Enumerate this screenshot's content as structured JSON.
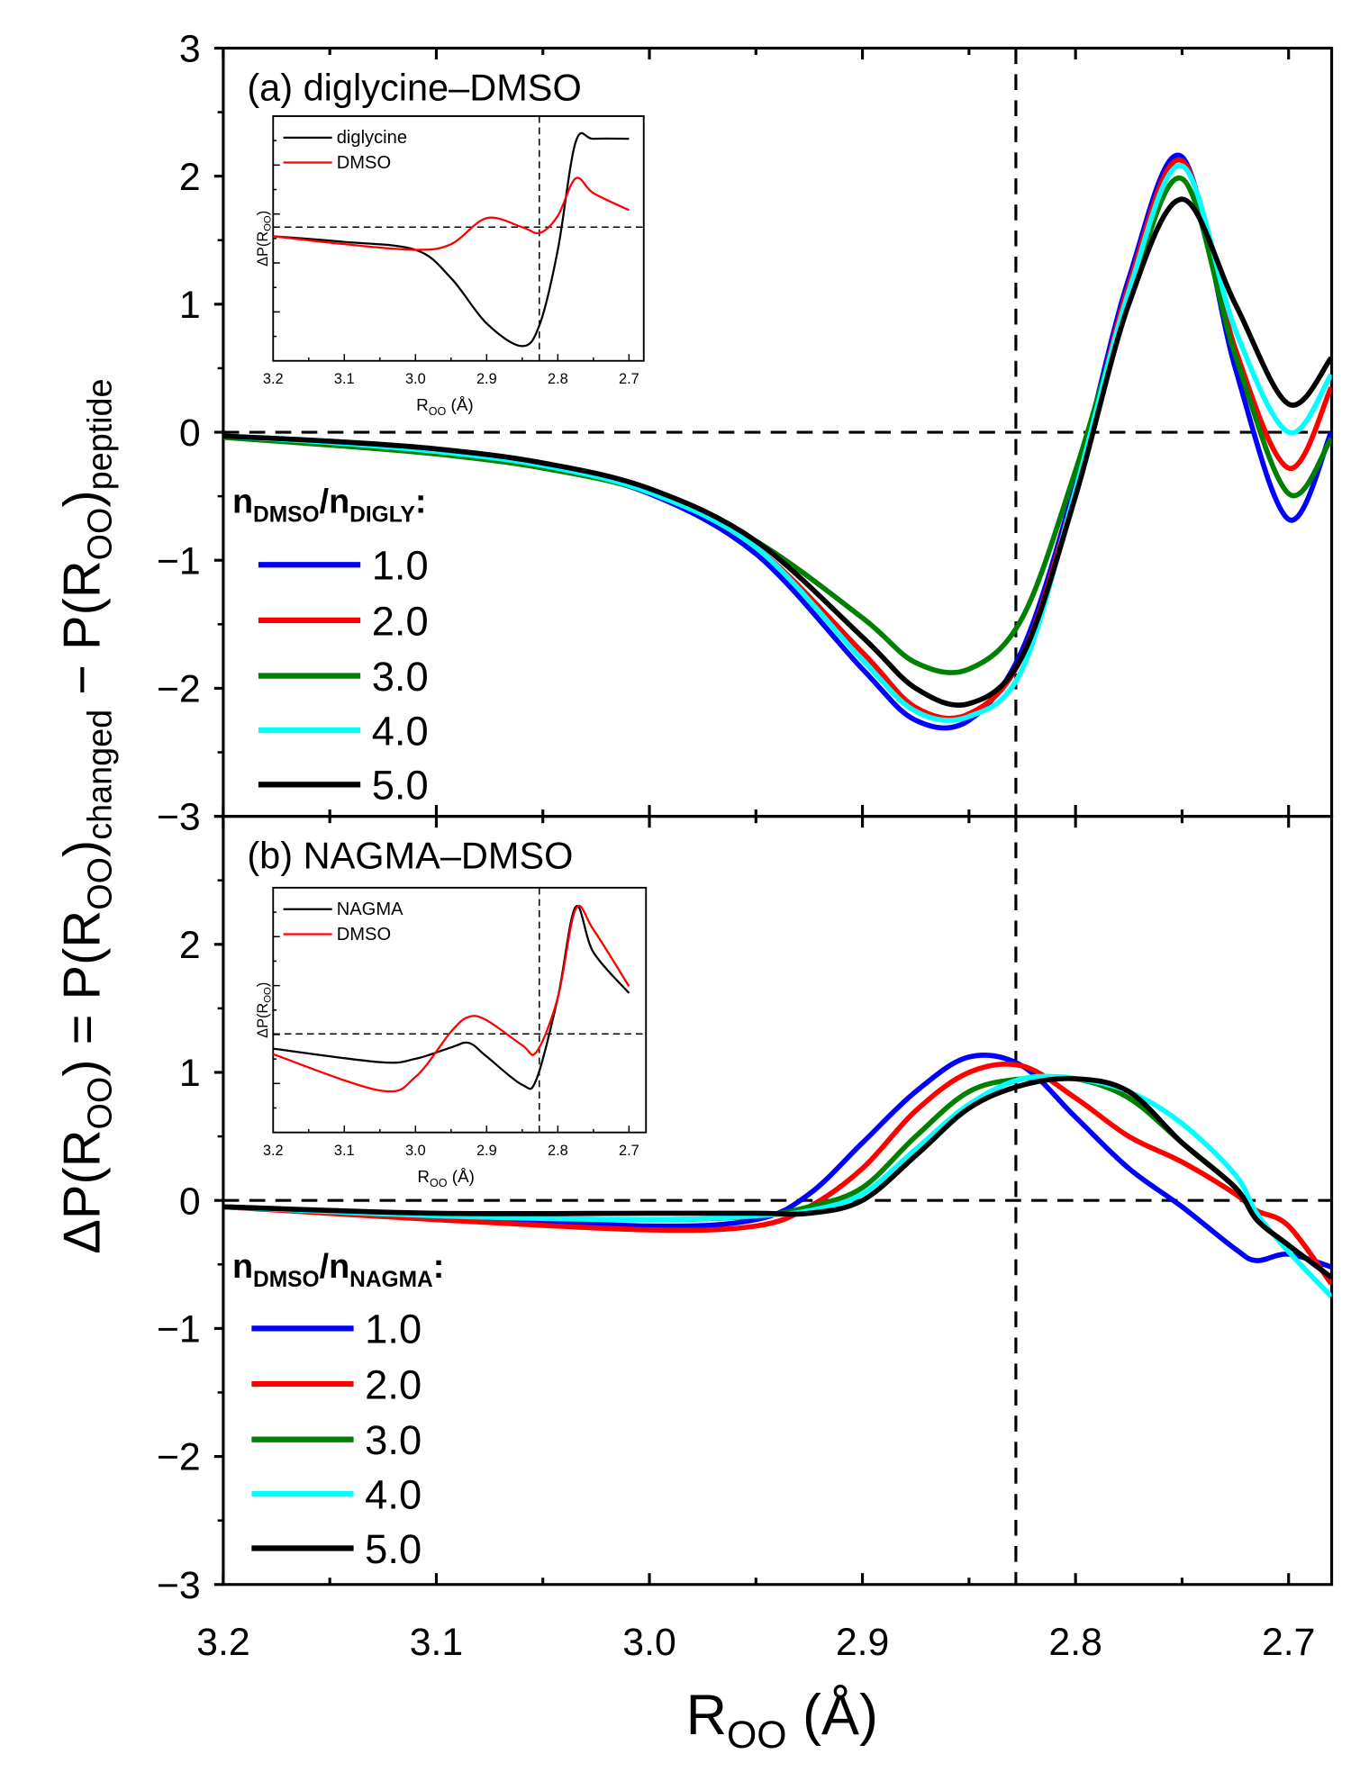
{
  "chart_data": [
    {
      "type": "line",
      "panel_title": "(a) diglycine–DMSO",
      "xlabel": "R_OO (Å)",
      "ylabel": "ΔP(R_OO) = P(R_OO)changed − P(R_OO)peptide",
      "xlim": [
        3.2,
        2.68
      ],
      "ylim": [
        -3,
        3
      ],
      "xticks": [
        "3.2",
        "3.1",
        "3.0",
        "2.9",
        "2.8",
        "2.7"
      ],
      "yticks": [
        "3",
        "2",
        "1",
        "0",
        "−1",
        "−2",
        "−3"
      ],
      "reference_lines": {
        "y": 0,
        "x": 2.828
      },
      "legend_title": "n_DMSO/n_DIGLY:",
      "x": [
        3.2,
        3.15,
        3.1,
        3.05,
        3.0,
        2.95,
        2.9,
        2.875,
        2.85,
        2.825,
        2.8,
        2.775,
        2.75,
        2.725,
        2.7,
        2.68
      ],
      "series": [
        {
          "name": "1.0",
          "color": "#0000ff",
          "values": [
            -0.03,
            -0.08,
            -0.15,
            -0.27,
            -0.48,
            -0.95,
            -1.85,
            -2.25,
            -2.25,
            -1.7,
            -0.4,
            1.2,
            2.15,
            0.5,
            -0.68,
            0.0
          ]
        },
        {
          "name": "2.0",
          "color": "#ff0000",
          "values": [
            -0.03,
            -0.08,
            -0.14,
            -0.26,
            -0.46,
            -0.9,
            -1.72,
            -2.15,
            -2.2,
            -1.75,
            -0.45,
            1.15,
            2.12,
            0.65,
            -0.28,
            0.35
          ]
        },
        {
          "name": "3.0",
          "color": "#008000",
          "values": [
            -0.04,
            -0.1,
            -0.17,
            -0.28,
            -0.47,
            -0.85,
            -1.45,
            -1.8,
            -1.85,
            -1.45,
            -0.3,
            1.05,
            1.98,
            0.6,
            -0.48,
            -0.05
          ]
        },
        {
          "name": "4.0",
          "color": "#00ffff",
          "values": [
            -0.03,
            -0.08,
            -0.15,
            -0.26,
            -0.47,
            -0.9,
            -1.78,
            -2.18,
            -2.22,
            -1.85,
            -0.45,
            1.1,
            2.08,
            0.8,
            0.0,
            0.45
          ]
        },
        {
          "name": "5.0",
          "color": "#000000",
          "values": [
            -0.03,
            -0.07,
            -0.13,
            -0.24,
            -0.44,
            -0.85,
            -1.6,
            -2.0,
            -2.12,
            -1.75,
            -0.5,
            1.0,
            1.82,
            1.0,
            0.22,
            0.58
          ]
        }
      ],
      "inset": {
        "xlabel": "R_OO (Å)",
        "ylabel": "ΔP(R_OO)",
        "xticks": [
          "3.2",
          "3.1",
          "3.0",
          "2.9",
          "2.8",
          "2.7"
        ],
        "reference_lines": {
          "y": 0,
          "x": 2.826
        },
        "x": [
          3.2,
          3.1,
          3.0,
          2.95,
          2.9,
          2.85,
          2.825,
          2.8,
          2.775,
          2.75,
          2.7
        ],
        "series": [
          {
            "name": "diglycine",
            "color": "#000000",
            "values": [
              -0.08,
              -0.13,
              -0.2,
              -0.45,
              -0.85,
              -1.05,
              -0.85,
              -0.2,
              0.75,
              0.78,
              0.78
            ]
          },
          {
            "name": "DMSO",
            "color": "#ff0000",
            "values": [
              -0.08,
              -0.15,
              -0.2,
              -0.15,
              0.08,
              0.0,
              -0.05,
              0.1,
              0.43,
              0.3,
              0.15
            ]
          }
        ]
      }
    },
    {
      "type": "line",
      "panel_title": "(b) NAGMA–DMSO",
      "xlim": [
        3.2,
        2.68
      ],
      "ylim": [
        -3,
        3
      ],
      "yticks": [
        "3",
        "2",
        "1",
        "0",
        "−1",
        "−2",
        "−3"
      ],
      "reference_lines": {
        "y": 0,
        "x": 2.828
      },
      "legend_title": "n_DMSO/n_NAGMA:",
      "x": [
        3.2,
        3.1,
        3.0,
        2.95,
        2.925,
        2.9,
        2.875,
        2.85,
        2.825,
        2.8,
        2.775,
        2.75,
        2.725,
        2.715,
        2.7,
        2.68
      ],
      "series": [
        {
          "name": "1.0",
          "color": "#0000ff",
          "values": [
            -0.05,
            -0.12,
            -0.2,
            -0.15,
            0.05,
            0.45,
            0.85,
            1.12,
            1.05,
            0.65,
            0.25,
            -0.05,
            -0.38,
            -0.47,
            -0.42,
            -0.52
          ]
        },
        {
          "name": "2.0",
          "color": "#ff0000",
          "values": [
            -0.05,
            -0.15,
            -0.23,
            -0.2,
            -0.05,
            0.25,
            0.7,
            1.0,
            1.05,
            0.8,
            0.5,
            0.3,
            0.05,
            -0.08,
            -0.2,
            -0.65
          ]
        },
        {
          "name": "3.0",
          "color": "#008000",
          "values": [
            -0.05,
            -0.12,
            -0.15,
            -0.12,
            -0.05,
            0.1,
            0.5,
            0.85,
            0.95,
            0.95,
            0.8,
            0.45,
            0.1,
            -0.15,
            -0.35,
            -0.6
          ]
        },
        {
          "name": "4.0",
          "color": "#00ffff",
          "values": [
            -0.05,
            -0.12,
            -0.15,
            -0.12,
            -0.08,
            0.05,
            0.4,
            0.75,
            0.95,
            0.95,
            0.85,
            0.6,
            0.2,
            -0.1,
            -0.4,
            -0.75
          ]
        },
        {
          "name": "5.0",
          "color": "#000000",
          "values": [
            -0.05,
            -0.1,
            -0.1,
            -0.1,
            -0.1,
            0.0,
            0.35,
            0.72,
            0.9,
            0.95,
            0.85,
            0.45,
            0.1,
            -0.15,
            -0.35,
            -0.6
          ]
        }
      ],
      "inset": {
        "xlabel": "R_OO (Å)",
        "ylabel": "ΔP(R_OO)",
        "xticks": [
          "3.2",
          "3.1",
          "3.0",
          "2.9",
          "2.8",
          "2.7"
        ],
        "reference_lines": {
          "y": 0,
          "x": 2.826
        },
        "x": [
          3.2,
          3.05,
          3.0,
          2.95,
          2.925,
          2.9,
          2.85,
          2.83,
          2.8,
          2.775,
          2.75,
          2.7
        ],
        "series": [
          {
            "name": "NAGMA",
            "color": "#000000",
            "values": [
              -0.13,
              -0.25,
              -0.22,
              -0.12,
              -0.08,
              -0.2,
              -0.45,
              -0.4,
              0.32,
              1.12,
              0.72,
              0.36
            ]
          },
          {
            "name": "DMSO",
            "color": "#ff0000",
            "values": [
              -0.18,
              -0.5,
              -0.38,
              0.02,
              0.15,
              0.12,
              -0.1,
              -0.16,
              0.32,
              1.1,
              0.92,
              0.42
            ]
          }
        ]
      }
    }
  ]
}
